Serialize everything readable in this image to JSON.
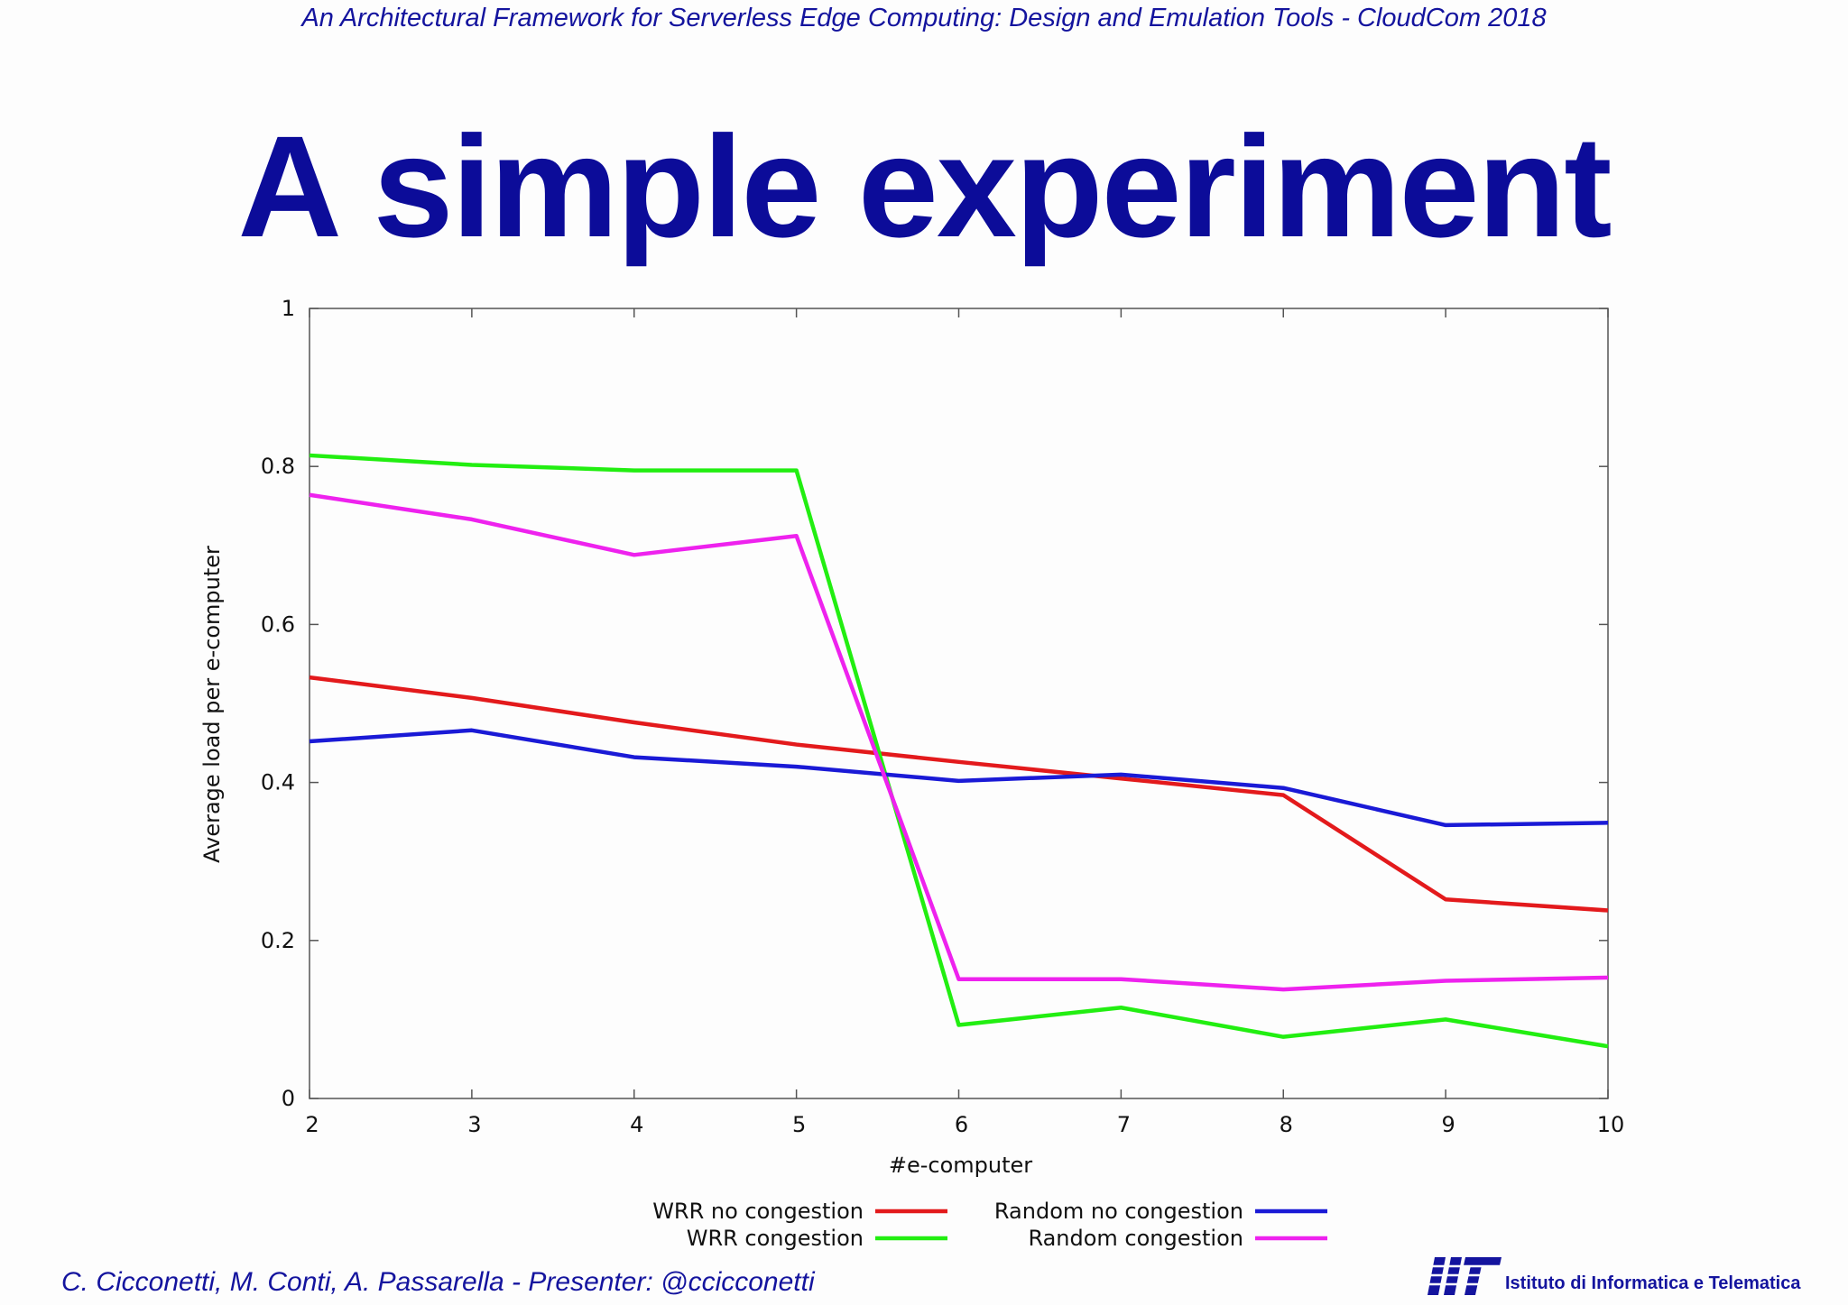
{
  "header": {
    "citation": "An Architectural Framework for Serverless Edge Computing: Design and Emulation Tools - CloudCom 2018"
  },
  "slide": {
    "title": "A simple experiment"
  },
  "chart_data": {
    "type": "line",
    "title": "",
    "xlabel": "#e-computer",
    "ylabel": "Average load per e-computer",
    "x": [
      2,
      3,
      4,
      5,
      6,
      7,
      8,
      9,
      10
    ],
    "xlim": [
      2,
      10
    ],
    "ylim": [
      0,
      1
    ],
    "x_ticks": [
      "2",
      "3",
      "4",
      "5",
      "6",
      "7",
      "8",
      "9",
      "10"
    ],
    "y_ticks": [
      "0",
      "0.2",
      "0.4",
      "0.6",
      "0.8",
      "1"
    ],
    "y_tick_values": [
      0,
      0.2,
      0.4,
      0.6,
      0.8,
      1
    ],
    "grid": false,
    "legend_position": "bottom",
    "series": [
      {
        "name": "WRR no congestion",
        "color": "#e31a1c",
        "values": [
          0.533,
          0.507,
          0.476,
          0.448,
          0.426,
          0.405,
          0.384,
          0.252,
          0.238
        ]
      },
      {
        "name": "WRR congestion",
        "color": "#22ee11",
        "values": [
          0.814,
          0.802,
          0.795,
          0.795,
          0.093,
          0.115,
          0.078,
          0.1,
          0.066
        ]
      },
      {
        "name": "Random no congestion",
        "color": "#1a1ad6",
        "values": [
          0.452,
          0.466,
          0.432,
          0.42,
          0.402,
          0.41,
          0.393,
          0.346,
          0.349
        ]
      },
      {
        "name": "Random congestion",
        "color": "#ee22ee",
        "values": [
          0.764,
          0.733,
          0.688,
          0.712,
          0.151,
          0.151,
          0.138,
          0.149,
          0.153
        ]
      }
    ]
  },
  "footer": {
    "authors": "C. Cicconetti, M. Conti, A. Passarella - Presenter: @ccicconetti",
    "logo_mark": "IIT",
    "institute": "Istituto di Informatica e Telematica"
  },
  "colors": {
    "title": "#0c0c99",
    "text": "#14149e"
  }
}
